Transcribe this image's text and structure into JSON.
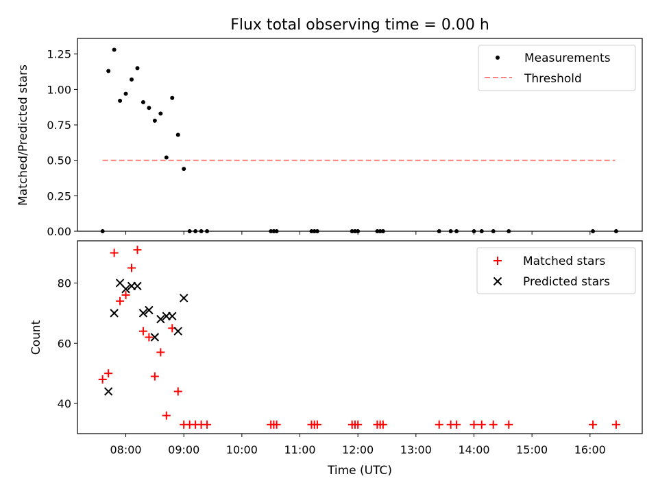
{
  "chart_data": [
    {
      "type": "scatter",
      "title": "Flux total observing time = 0.00 h",
      "xlabel": "",
      "ylabel": "Matched/Predicted stars",
      "xlim": [
        "07:10",
        "16:54"
      ],
      "ylim": [
        0,
        1.36
      ],
      "yticks": [
        "0.00",
        "0.25",
        "0.50",
        "0.75",
        "1.00",
        "1.25"
      ],
      "legend_position": "upper-right",
      "legend": [
        {
          "label": "Measurements",
          "marker": "dot",
          "color": "#000000"
        },
        {
          "label": "Threshold",
          "marker": "dashed-line",
          "color": "#ff7f7f"
        }
      ],
      "threshold": {
        "value": 0.5,
        "x_start": "07:36",
        "x_end": "16:26"
      },
      "series": [
        {
          "marker": "dot",
          "color": "#000000",
          "points": [
            [
              "07:36",
              0.0
            ],
            [
              "07:42",
              1.13
            ],
            [
              "07:48",
              1.28
            ],
            [
              "07:54",
              0.92
            ],
            [
              "08:00",
              0.97
            ],
            [
              "08:06",
              1.07
            ],
            [
              "08:12",
              1.15
            ],
            [
              "08:18",
              0.91
            ],
            [
              "08:24",
              0.87
            ],
            [
              "08:30",
              0.78
            ],
            [
              "08:36",
              0.83
            ],
            [
              "08:42",
              0.52
            ],
            [
              "08:48",
              0.94
            ],
            [
              "08:54",
              0.68
            ],
            [
              "09:00",
              0.44
            ],
            [
              "09:06",
              0.0
            ],
            [
              "09:12",
              0.0
            ],
            [
              "09:18",
              0.0
            ],
            [
              "09:24",
              0.0
            ],
            [
              "10:30",
              0.0
            ],
            [
              "10:33",
              0.0
            ],
            [
              "10:36",
              0.0
            ],
            [
              "11:12",
              0.0
            ],
            [
              "11:15",
              0.0
            ],
            [
              "11:18",
              0.0
            ],
            [
              "11:54",
              0.0
            ],
            [
              "11:57",
              0.0
            ],
            [
              "12:00",
              0.0
            ],
            [
              "12:20",
              0.0
            ],
            [
              "12:23",
              0.0
            ],
            [
              "12:26",
              0.0
            ],
            [
              "13:24",
              0.0
            ],
            [
              "13:36",
              0.0
            ],
            [
              "13:42",
              0.0
            ],
            [
              "14:00",
              0.0
            ],
            [
              "14:08",
              0.0
            ],
            [
              "14:20",
              0.0
            ],
            [
              "14:36",
              0.0
            ],
            [
              "16:03",
              0.0
            ],
            [
              "16:27",
              0.0
            ]
          ]
        }
      ]
    },
    {
      "type": "scatter",
      "title": "",
      "xlabel": "Time (UTC)",
      "ylabel": "Count",
      "xlim": [
        "07:10",
        "16:54"
      ],
      "ylim": [
        30,
        94
      ],
      "xticks": [
        "08:00",
        "09:00",
        "10:00",
        "11:00",
        "12:00",
        "13:00",
        "14:00",
        "15:00",
        "16:00"
      ],
      "yticks": [
        "40",
        "60",
        "80"
      ],
      "legend_position": "upper-right",
      "legend": [
        {
          "label": "Matched stars",
          "marker": "plus",
          "color": "#ff0000"
        },
        {
          "label": "Predicted stars",
          "marker": "x",
          "color": "#000000"
        }
      ],
      "series": [
        {
          "name": "Matched stars",
          "marker": "plus",
          "color": "#ff0000",
          "points": [
            [
              "07:36",
              48
            ],
            [
              "07:42",
              50
            ],
            [
              "07:48",
              90
            ],
            [
              "07:54",
              74
            ],
            [
              "08:00",
              76
            ],
            [
              "08:06",
              85
            ],
            [
              "08:12",
              91
            ],
            [
              "08:18",
              64
            ],
            [
              "08:24",
              62
            ],
            [
              "08:30",
              49
            ],
            [
              "08:36",
              57
            ],
            [
              "08:42",
              36
            ],
            [
              "08:48",
              65
            ],
            [
              "08:54",
              44
            ],
            [
              "09:00",
              33
            ],
            [
              "09:06",
              33
            ],
            [
              "09:12",
              33
            ],
            [
              "09:18",
              33
            ],
            [
              "09:24",
              33
            ],
            [
              "10:30",
              33
            ],
            [
              "10:33",
              33
            ],
            [
              "10:36",
              33
            ],
            [
              "11:12",
              33
            ],
            [
              "11:15",
              33
            ],
            [
              "11:18",
              33
            ],
            [
              "11:54",
              33
            ],
            [
              "11:57",
              33
            ],
            [
              "12:00",
              33
            ],
            [
              "12:20",
              33
            ],
            [
              "12:23",
              33
            ],
            [
              "12:26",
              33
            ],
            [
              "13:24",
              33
            ],
            [
              "13:36",
              33
            ],
            [
              "13:42",
              33
            ],
            [
              "14:00",
              33
            ],
            [
              "14:08",
              33
            ],
            [
              "14:20",
              33
            ],
            [
              "14:36",
              33
            ],
            [
              "16:03",
              33
            ],
            [
              "16:27",
              33
            ]
          ]
        },
        {
          "name": "Predicted stars",
          "marker": "x",
          "color": "#000000",
          "points": [
            [
              "07:42",
              44
            ],
            [
              "07:48",
              70
            ],
            [
              "07:54",
              80
            ],
            [
              "08:00",
              78
            ],
            [
              "08:06",
              79
            ],
            [
              "08:12",
              79
            ],
            [
              "08:18",
              70
            ],
            [
              "08:24",
              71
            ],
            [
              "08:30",
              62
            ],
            [
              "08:36",
              68
            ],
            [
              "08:42",
              69
            ],
            [
              "08:48",
              69
            ],
            [
              "08:54",
              64
            ],
            [
              "09:00",
              75
            ]
          ]
        }
      ]
    }
  ]
}
